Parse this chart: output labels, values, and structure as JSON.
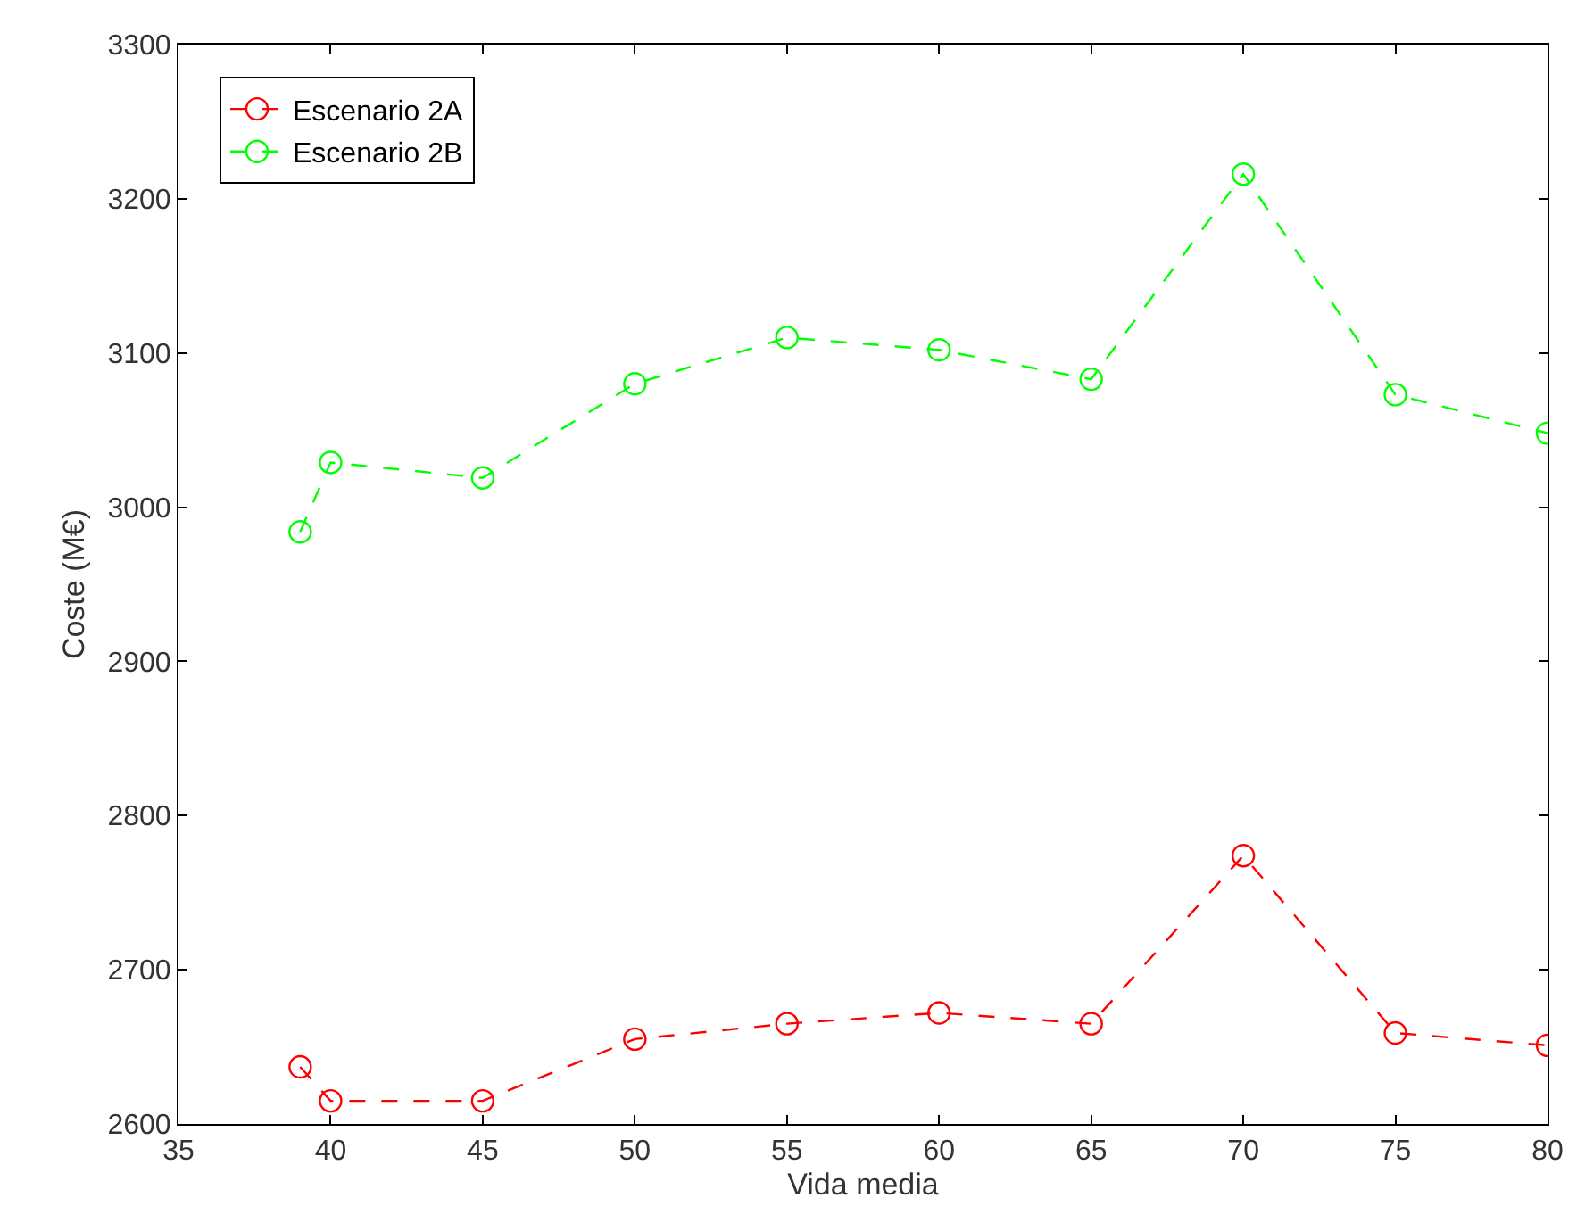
{
  "chart_data": {
    "type": "line",
    "xlabel": "Vida media",
    "ylabel": "Coste (M€)",
    "x": [
      39,
      40,
      45,
      50,
      55,
      60,
      65,
      70,
      75,
      80
    ],
    "series": [
      {
        "name": "Escenario 2A",
        "color": "#ff0000",
        "values": [
          2637,
          2615,
          2615,
          2655,
          2665,
          2672,
          2665,
          2774,
          2659,
          2651
        ]
      },
      {
        "name": "Escenario 2B",
        "color": "#00ff00",
        "values": [
          2984,
          3029,
          3019,
          3080,
          3110,
          3102,
          3083,
          3216,
          3073,
          3048
        ]
      }
    ],
    "xlim": [
      35,
      80
    ],
    "xticks": [
      35,
      40,
      45,
      50,
      55,
      60,
      65,
      70,
      75,
      80
    ],
    "ylim": [
      2600,
      3300
    ],
    "yticks": [
      2600,
      2700,
      2800,
      2900,
      3000,
      3100,
      3200,
      3300
    ],
    "legend": "top left",
    "marker": "circle",
    "line_style": "dashed"
  }
}
